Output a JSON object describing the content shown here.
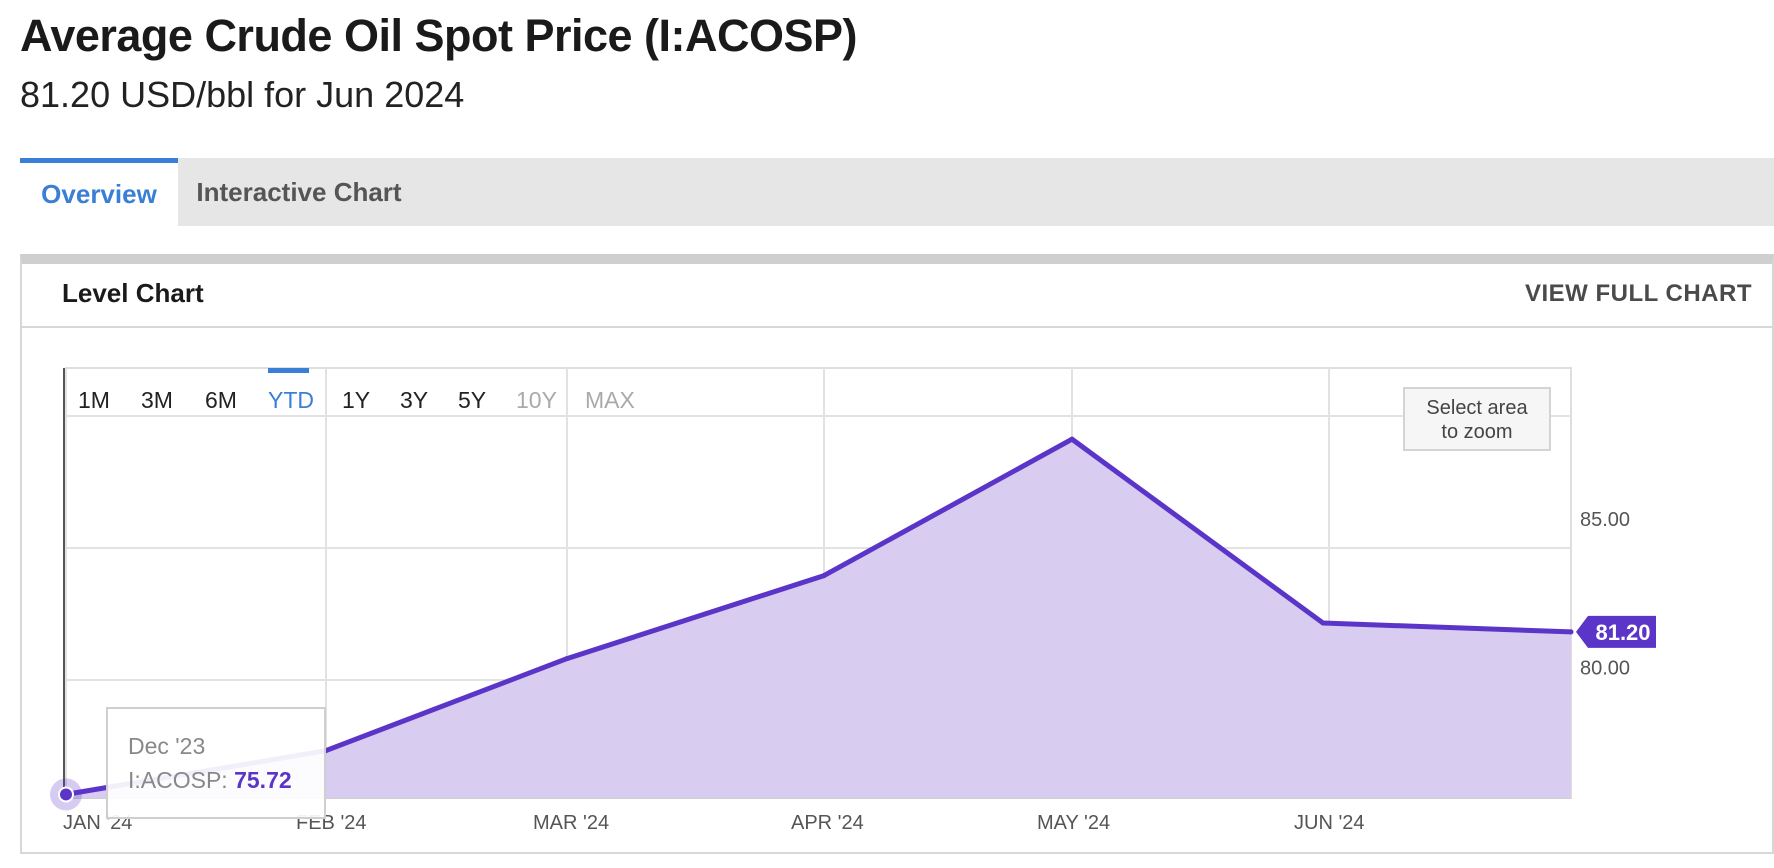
{
  "header": {
    "title": "Average Crude Oil Spot Price (I:ACOSP)",
    "subtitle": "81.20 USD/bbl for Jun 2024"
  },
  "tabs": [
    {
      "label": "Overview",
      "active": true
    },
    {
      "label": "Interactive Chart",
      "active": false
    }
  ],
  "panel": {
    "title": "Level Chart",
    "view_full_label": "VIEW FULL CHART"
  },
  "range_buttons": [
    {
      "label": "1M",
      "state": "normal"
    },
    {
      "label": "3M",
      "state": "normal"
    },
    {
      "label": "6M",
      "state": "normal"
    },
    {
      "label": "YTD",
      "state": "active"
    },
    {
      "label": "1Y",
      "state": "normal"
    },
    {
      "label": "3Y",
      "state": "normal"
    },
    {
      "label": "5Y",
      "state": "normal"
    },
    {
      "label": "10Y",
      "state": "disabled"
    },
    {
      "label": "MAX",
      "state": "disabled"
    }
  ],
  "zoom_hint": [
    "Select area",
    "to zoom"
  ],
  "tooltip": {
    "date": "Dec '23",
    "series": "I:ACOSP: ",
    "value": "75.72"
  },
  "colors": {
    "line": "#5b35c8",
    "area": "#d8ccf0",
    "accent": "#3a7fd5"
  },
  "chart_data": {
    "type": "area",
    "x": [
      "Dec '23",
      "Jan '24",
      "Feb '24",
      "Mar '24",
      "Apr '24",
      "May '24",
      "Jun '24"
    ],
    "series": [
      {
        "name": "I:ACOSP",
        "values": [
          75.72,
          77.2,
          80.3,
          83.1,
          87.7,
          81.5,
          81.2
        ]
      }
    ],
    "x_tick_labels": [
      "JAN '24",
      "FEB '24",
      "MAR '24",
      "APR '24",
      "MAY '24",
      "JUN '24"
    ],
    "y_tick_labels": [
      "80.00",
      "85.00"
    ],
    "y_ticks": [
      80,
      85
    ],
    "ylim": [
      75.6,
      90.1
    ],
    "last_value_label": "81.20",
    "grid": true,
    "legend": "none"
  }
}
